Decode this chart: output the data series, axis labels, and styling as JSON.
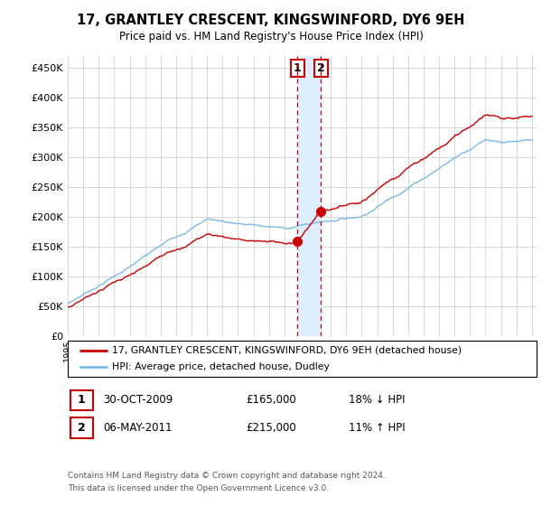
{
  "title": "17, GRANTLEY CRESCENT, KINGSWINFORD, DY6 9EH",
  "subtitle": "Price paid vs. HM Land Registry's House Price Index (HPI)",
  "legend_line1": "17, GRANTLEY CRESCENT, KINGSWINFORD, DY6 9EH (detached house)",
  "legend_line2": "HPI: Average price, detached house, Dudley",
  "transaction1_date": "30-OCT-2009",
  "transaction1_price": "£165,000",
  "transaction1_hpi": "18% ↓ HPI",
  "transaction2_date": "06-MAY-2011",
  "transaction2_price": "£215,000",
  "transaction2_hpi": "11% ↑ HPI",
  "footer": "Contains HM Land Registry data © Crown copyright and database right 2024.\nThis data is licensed under the Open Government Licence v3.0.",
  "hpi_color": "#7abbe8",
  "price_color": "#cc0000",
  "highlight_color": "#ddeeff",
  "vline_color": "#cc0000",
  "ylim": [
    0,
    470000
  ],
  "ylabel_ticks": [
    0,
    50000,
    100000,
    150000,
    200000,
    250000,
    300000,
    350000,
    400000,
    450000
  ],
  "transaction1_x": 2009.83,
  "transaction2_x": 2011.35
}
